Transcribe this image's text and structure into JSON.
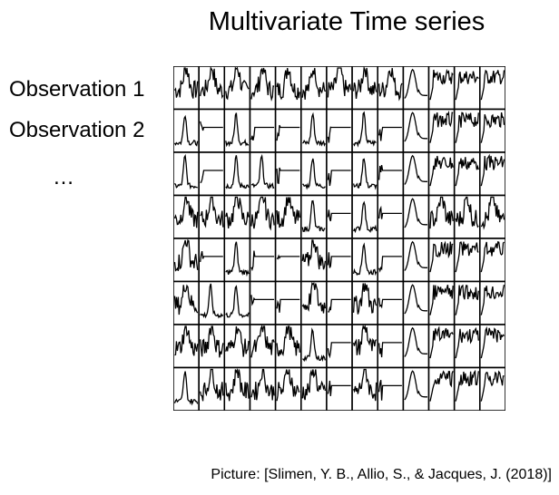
{
  "title": "Multivariate Time series",
  "row_labels": [
    "Observation 1",
    "Observation 2"
  ],
  "ellipsis": "…",
  "caption": "Picture: [Slimen, Y. B., Allio, S., & Jacques, J. (2018)]",
  "grid": {
    "rows": 8,
    "cols": 13,
    "line_color": "#000000",
    "background": "#ffffff",
    "cells": [
      [
        "spiky",
        "spiky",
        "spiky",
        "spiky",
        "spiky",
        "spiky",
        "spiky",
        "spiky",
        "spiky",
        "hump",
        "step",
        "step",
        "step"
      ],
      [
        "peak",
        "flat",
        "peak",
        "flat",
        "flat",
        "peak",
        "flat",
        "peak",
        "flat",
        "hump",
        "step",
        "step",
        "step"
      ],
      [
        "peak",
        "flat",
        "peak",
        "peak",
        "flat",
        "peak",
        "flat",
        "peak",
        "flat",
        "hump",
        "step",
        "step",
        "step"
      ],
      [
        "spiky",
        "spiky",
        "spiky",
        "spiky",
        "spiky",
        "peak",
        "flat",
        "peak",
        "flat",
        "hump",
        "spiky",
        "spiky",
        "spiky"
      ],
      [
        "spiky",
        "flat",
        "peak",
        "flat",
        "flat",
        "spiky",
        "flat",
        "peak",
        "flat",
        "hump",
        "step",
        "step",
        "step"
      ],
      [
        "spiky",
        "peak",
        "peak",
        "flat",
        "flat",
        "spiky",
        "flat",
        "spiky",
        "flat",
        "hump",
        "step",
        "step",
        "step"
      ],
      [
        "spiky",
        "spiky",
        "spiky",
        "spiky",
        "spiky",
        "peak",
        "flat",
        "spiky",
        "flat",
        "hump",
        "step",
        "step",
        "step"
      ],
      [
        "peak",
        "spiky",
        "spiky",
        "spiky",
        "spiky",
        "spiky",
        "flat",
        "spiky",
        "flat",
        "hump",
        "step",
        "step",
        "step"
      ]
    ]
  }
}
